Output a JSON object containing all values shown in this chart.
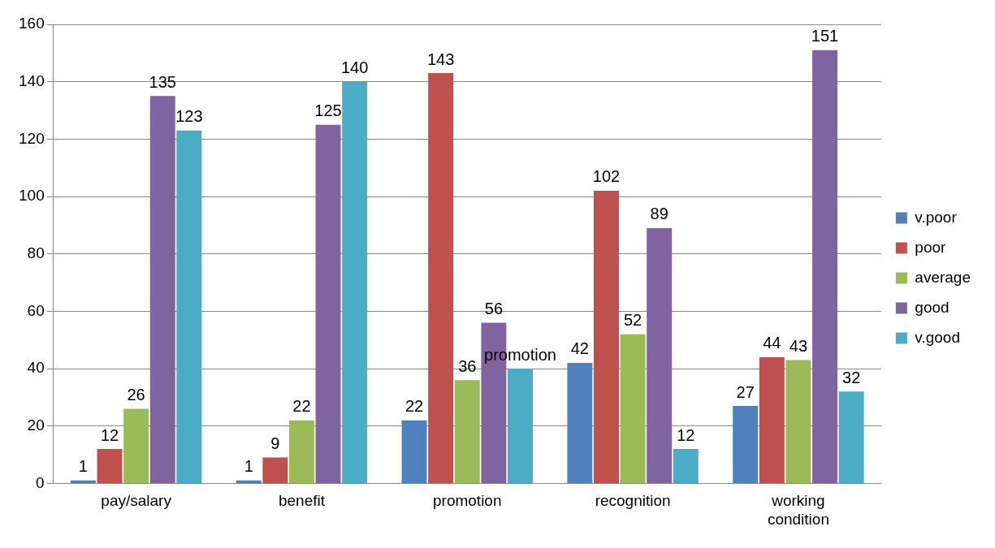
{
  "chart_data": {
    "type": "bar",
    "categories": [
      "pay/salary",
      "benefit",
      "promotion",
      "recognition",
      "working condition"
    ],
    "series": [
      {
        "name": "v.poor",
        "color": "#4f81bd",
        "values": [
          1,
          1,
          22,
          42,
          27
        ],
        "value_labels": [
          "1",
          "1",
          "22",
          "42",
          "27"
        ]
      },
      {
        "name": "poor",
        "color": "#c0504d",
        "values": [
          12,
          9,
          143,
          102,
          44
        ],
        "value_labels": [
          "12",
          "9",
          "143",
          "102",
          "44"
        ]
      },
      {
        "name": "average",
        "color": "#9bbb59",
        "values": [
          26,
          22,
          36,
          52,
          43
        ],
        "value_labels": [
          "26",
          "22",
          "36",
          "52",
          "43"
        ]
      },
      {
        "name": "good",
        "color": "#8064a2",
        "values": [
          135,
          125,
          56,
          89,
          151
        ],
        "value_labels": [
          "135",
          "125",
          "56",
          "89",
          "151"
        ]
      },
      {
        "name": "v.good",
        "color": "#4bacc6",
        "values": [
          123,
          140,
          40,
          12,
          32
        ],
        "value_labels": [
          "123",
          "140",
          "promotion",
          "12",
          "32"
        ]
      }
    ],
    "ylim": [
      0,
      160
    ],
    "yticks": [
      0,
      20,
      40,
      60,
      80,
      100,
      120,
      140,
      160
    ],
    "grid": "y",
    "legend": "right"
  }
}
